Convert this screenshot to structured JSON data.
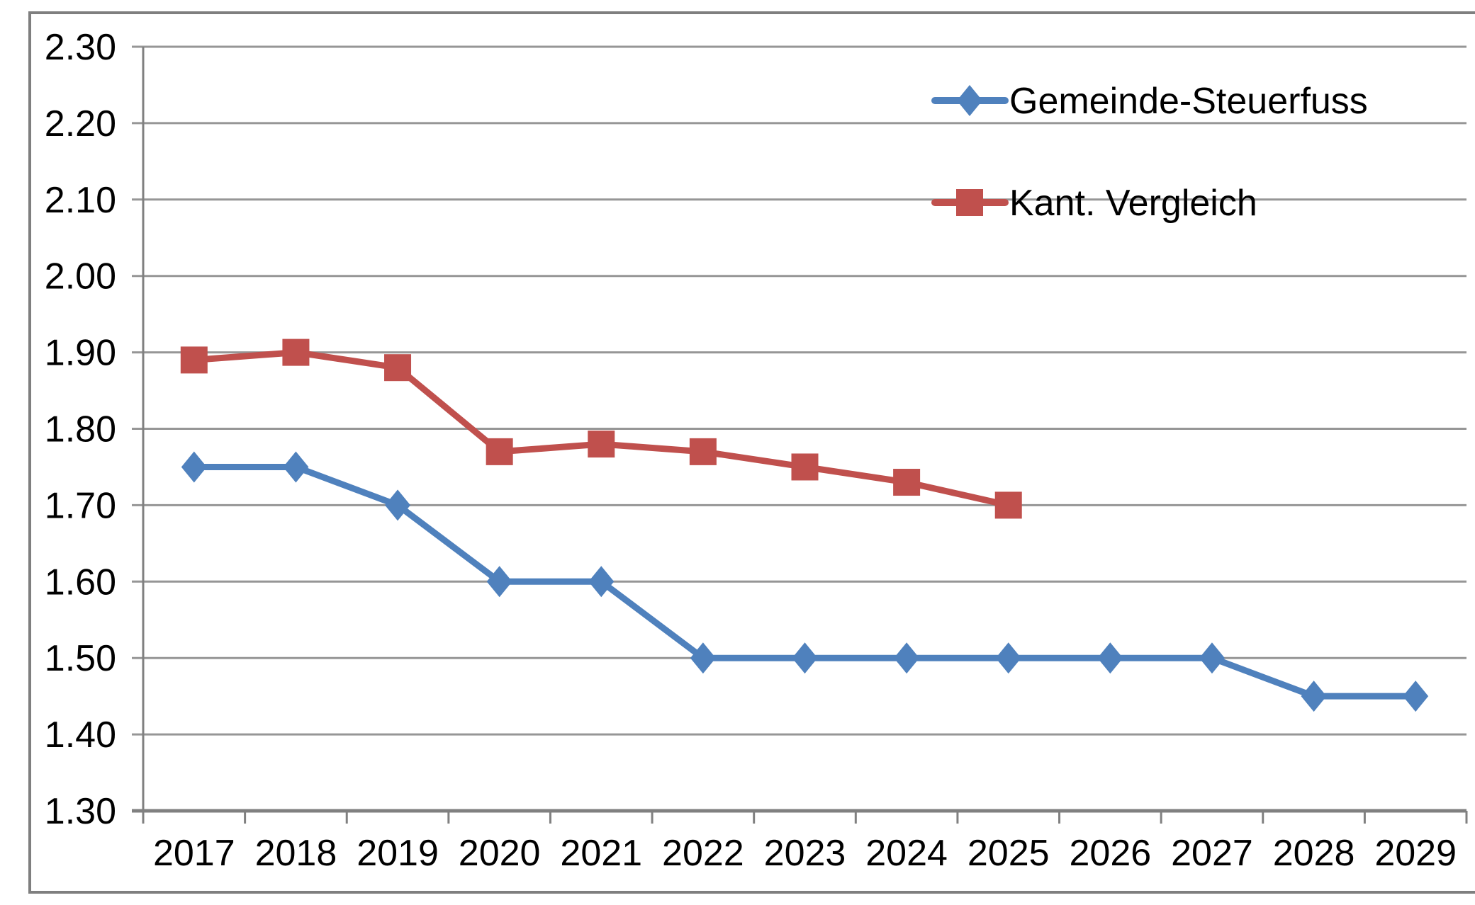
{
  "chart_data": {
    "type": "line",
    "title": "",
    "xlabel": "",
    "ylabel": "",
    "x": [
      "2017",
      "2018",
      "2019",
      "2020",
      "2021",
      "2022",
      "2023",
      "2024",
      "2025",
      "2026",
      "2027",
      "2028",
      "2029"
    ],
    "series": [
      {
        "name": "Gemeinde-Steuerfuss",
        "color": "#4F81BD",
        "marker": "diamond",
        "values": [
          1.75,
          1.75,
          1.7,
          1.6,
          1.6,
          1.5,
          1.5,
          1.5,
          1.5,
          1.5,
          1.5,
          1.45,
          1.45
        ]
      },
      {
        "name": "Kant. Vergleich",
        "color": "#C0504D",
        "marker": "square",
        "values": [
          1.89,
          1.9,
          1.88,
          1.77,
          1.78,
          1.77,
          1.75,
          1.73,
          1.7
        ]
      }
    ],
    "ylim": [
      1.3,
      2.3
    ],
    "ytick_step": 0.1,
    "ytick_labels": [
      "2.30",
      "2.20",
      "2.10",
      "2.00",
      "1.90",
      "1.80",
      "1.70",
      "1.60",
      "1.50",
      "1.40",
      "1.30"
    ],
    "grid": "horizontal",
    "legend_position": "inside-top-right",
    "legend_entries": [
      "Gemeinde-Steuerfuss",
      "Kant. Vergleich"
    ]
  },
  "colors": {
    "background": "#FFFFFF",
    "frame_border": "#7F7F7F",
    "gridline": "#969696",
    "axis": "#808080",
    "text": "#000000",
    "series_blue": "#4F81BD",
    "series_red": "#C0504D"
  }
}
